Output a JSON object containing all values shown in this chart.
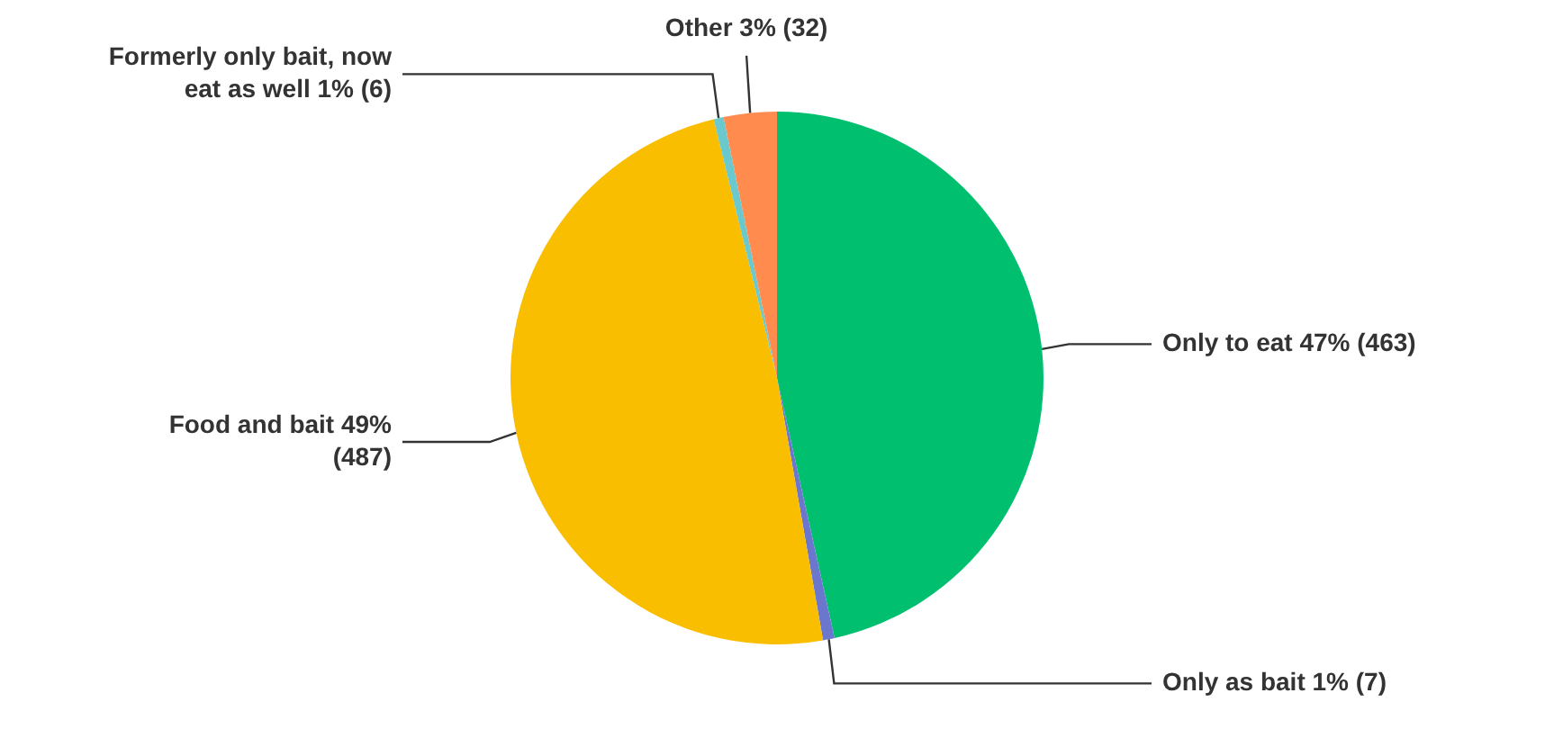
{
  "chart_data": {
    "type": "pie",
    "categories": [
      "Only to eat",
      "Only as bait",
      "Food and bait",
      "Formerly only bait, now eat as well",
      "Other"
    ],
    "values": [
      463,
      7,
      487,
      6,
      32
    ],
    "value_labels": [
      "47% (463)",
      "1% (7)",
      "49% (487)",
      "1% (6)",
      "3% (32)"
    ],
    "colors": [
      "#00bf6f",
      "#6b77cc",
      "#f9be00",
      "#6bc8cd",
      "#ff8b4f"
    ],
    "legend": false
  }
}
